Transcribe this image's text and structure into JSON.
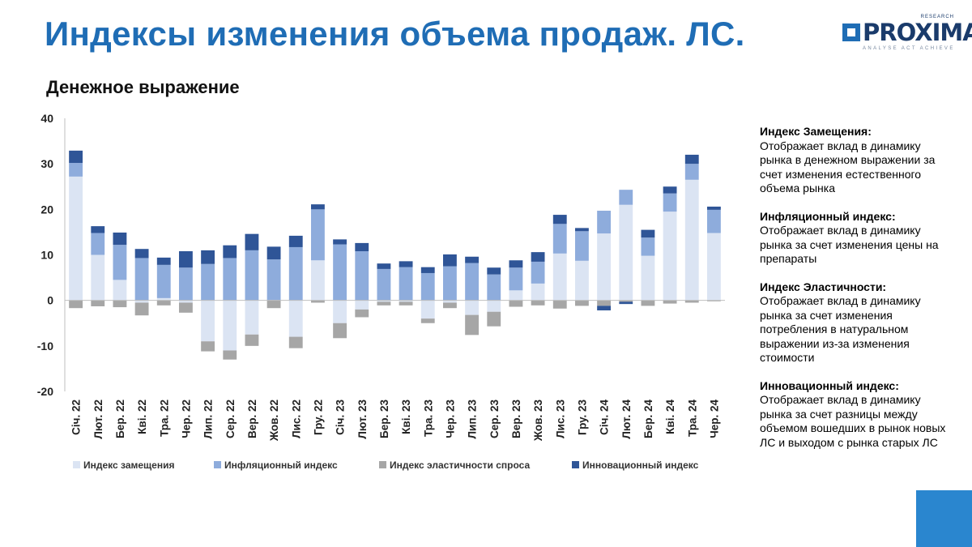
{
  "title": "Индексы изменения объема продаж. ЛС.",
  "subtitle": "Денежное выражение",
  "logo": {
    "brand": "PROXIMA",
    "tag_top": "RESEARCH",
    "tag_bottom": "ANALYSE ACT ACHIEVE"
  },
  "notes": [
    {
      "heading": "Индекс Замещения:",
      "body": "Отображает вклад в динамику рынка в денежном выражении за счет изменения естественного объема рынка"
    },
    {
      "heading": "Инфляционный индекс:",
      "body": "Отображает вклад в динамику рынка за счет изменения цены на препараты"
    },
    {
      "heading": "Индекс Эластичности:",
      "body": "Отображает вклад в динамику рынка за счет изменения потребления в натуральном выражении из-за изменения стоимости"
    },
    {
      "heading": "Инновационный индекс:",
      "body": "Отображает вклад в динамику рынка за счет разницы между объемом вошедших в рынок новых ЛС и выходом с рынка старых ЛС"
    }
  ],
  "chart_data": {
    "type": "bar",
    "stacked": true,
    "title": "",
    "xlabel": "",
    "ylabel": "",
    "ylim": [
      -20,
      40
    ],
    "yticks": [
      -20,
      -10,
      0,
      10,
      20,
      30,
      40
    ],
    "grid": false,
    "legend_position": "bottom",
    "categories": [
      "Січ. 22",
      "Лют. 22",
      "Бер. 22",
      "Кві. 22",
      "Тра. 22",
      "Чер. 22",
      "Лип. 22",
      "Сер. 22",
      "Вер. 22",
      "Жов. 22",
      "Лис. 22",
      "Гру. 22",
      "Січ. 23",
      "Лют. 23",
      "Бер. 23",
      "Кві. 23",
      "Тра. 23",
      "Чер. 23",
      "Лип. 23",
      "Сер. 23",
      "Вер. 23",
      "Жов. 23",
      "Лис. 23",
      "Гру. 23",
      "Січ. 24",
      "Лют. 24",
      "Бер. 24",
      "Кві. 24",
      "Тра. 24",
      "Чер. 24"
    ],
    "series": [
      {
        "name": "Индекс замещения",
        "color": "#dbe4f3",
        "values": [
          27.2,
          10,
          4.5,
          -0.5,
          0.5,
          -0.5,
          -9,
          -11,
          -7.5,
          0,
          -8,
          8.8,
          -5,
          -2,
          -0.3,
          -0.3,
          -4,
          -0.5,
          -3.2,
          -2.5,
          2.2,
          3.7,
          10.3,
          8.7,
          14.7,
          21,
          9.8,
          19.5,
          26.5,
          14.8
        ]
      },
      {
        "name": "Инфляционный индекс",
        "color": "#8eacdc",
        "values": [
          3,
          4.8,
          7.7,
          9.3,
          7.3,
          7.2,
          8,
          9.3,
          11,
          9,
          11.7,
          11.2,
          12.3,
          10.8,
          6.9,
          7.3,
          6,
          7.5,
          8.2,
          5.7,
          5,
          4.8,
          6.5,
          6.5,
          5,
          3.3,
          4,
          4,
          3.5,
          5.1
        ]
      },
      {
        "name": "Индекс эластичности спроса",
        "color": "#a6a6a6",
        "values": [
          -1.7,
          -1.3,
          -1.5,
          -2.8,
          -1.1,
          -2.2,
          -2.2,
          -2,
          -2.5,
          -1.7,
          -2.5,
          -0.5,
          -3.3,
          -1.7,
          -0.8,
          -0.8,
          -1,
          -1.2,
          -4.4,
          -3.2,
          -1.4,
          -1.1,
          -1.8,
          -1.2,
          -1.2,
          -0.3,
          -1.2,
          -0.7,
          -0.5,
          -0.2
        ]
      },
      {
        "name": "Инновационный индекс",
        "color": "#2f5597",
        "values": [
          2.7,
          1.5,
          2.7,
          2,
          1.6,
          3.6,
          3,
          2.8,
          3.6,
          2.8,
          2.5,
          1.1,
          1.1,
          1.8,
          1.2,
          1.3,
          1.3,
          2.6,
          1.4,
          1.5,
          1.6,
          2.1,
          2,
          0.7,
          -1,
          -0.5,
          1.7,
          1.5,
          2,
          0.7
        ]
      }
    ]
  }
}
